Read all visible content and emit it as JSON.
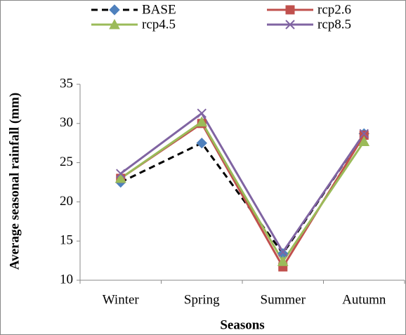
{
  "chart_data": {
    "type": "line",
    "x_label": "Seasons",
    "y_label": "Average seasonal rainfall (mm)",
    "categories": [
      "Winter",
      "Spring",
      "Summer",
      "Autumn"
    ],
    "series": [
      {
        "name": "BASE",
        "color": "#000000",
        "marker_color": "#4f81bd",
        "marker": "diamond",
        "dashed": true,
        "values": [
          22.5,
          27.5,
          13.4,
          28.7
        ]
      },
      {
        "name": "rcp2.6",
        "color": "#c0504d",
        "marker": "square",
        "values": [
          23,
          30,
          11.7,
          28.5
        ]
      },
      {
        "name": "rcp4.5",
        "color": "#9bbb59",
        "marker": "triangle",
        "values": [
          23,
          30.2,
          12.4,
          27.7
        ]
      },
      {
        "name": "rcp8.5",
        "color": "#8064a2",
        "marker": "x",
        "values": [
          23.6,
          31.3,
          13.6,
          28.7
        ]
      }
    ],
    "ylim": [
      10,
      35
    ],
    "yticks": [
      10,
      15,
      20,
      25,
      30,
      35
    ],
    "grid": false
  }
}
